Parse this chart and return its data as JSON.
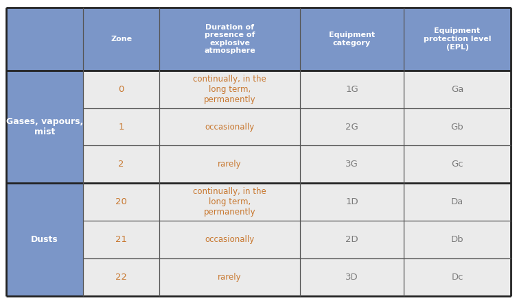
{
  "header_bg": "#7B96C8",
  "header_text_color": "#FFFFFF",
  "left_col_bg": "#7B96C8",
  "left_col_text_color": "#FFFFFF",
  "row_bg_even": "#EBEBEB",
  "row_bg_odd": "#E0E0E0",
  "zone_text_color": "#C87830",
  "duration_text_color": "#C87830",
  "cat_text_color": "#7A7A7A",
  "epl_text_color": "#7A7A7A",
  "border_thin_color": "#555555",
  "border_thick_color": "#222222",
  "header_row": [
    "Zone",
    "Duration of\npresence of\nexplosive\natmosphere",
    "Equipment\ncategory",
    "Equipment\nprotection level\n(EPL)"
  ],
  "group_labels": [
    "Gases, vapours,\nmist",
    "Dusts"
  ],
  "rows": [
    [
      "0",
      "continually, in the\nlong term,\npermanently",
      "1G",
      "Ga"
    ],
    [
      "1",
      "occasionally",
      "2G",
      "Gb"
    ],
    [
      "2",
      "rarely",
      "3G",
      "Gc"
    ],
    [
      "20",
      "continually, in the\nlong term,\npermanently",
      "1D",
      "Da"
    ],
    [
      "21",
      "occasionally",
      "2D",
      "Db"
    ],
    [
      "22",
      "rarely",
      "3D",
      "Dc"
    ]
  ],
  "fig_width": 7.53,
  "fig_height": 4.45,
  "dpi": 100
}
